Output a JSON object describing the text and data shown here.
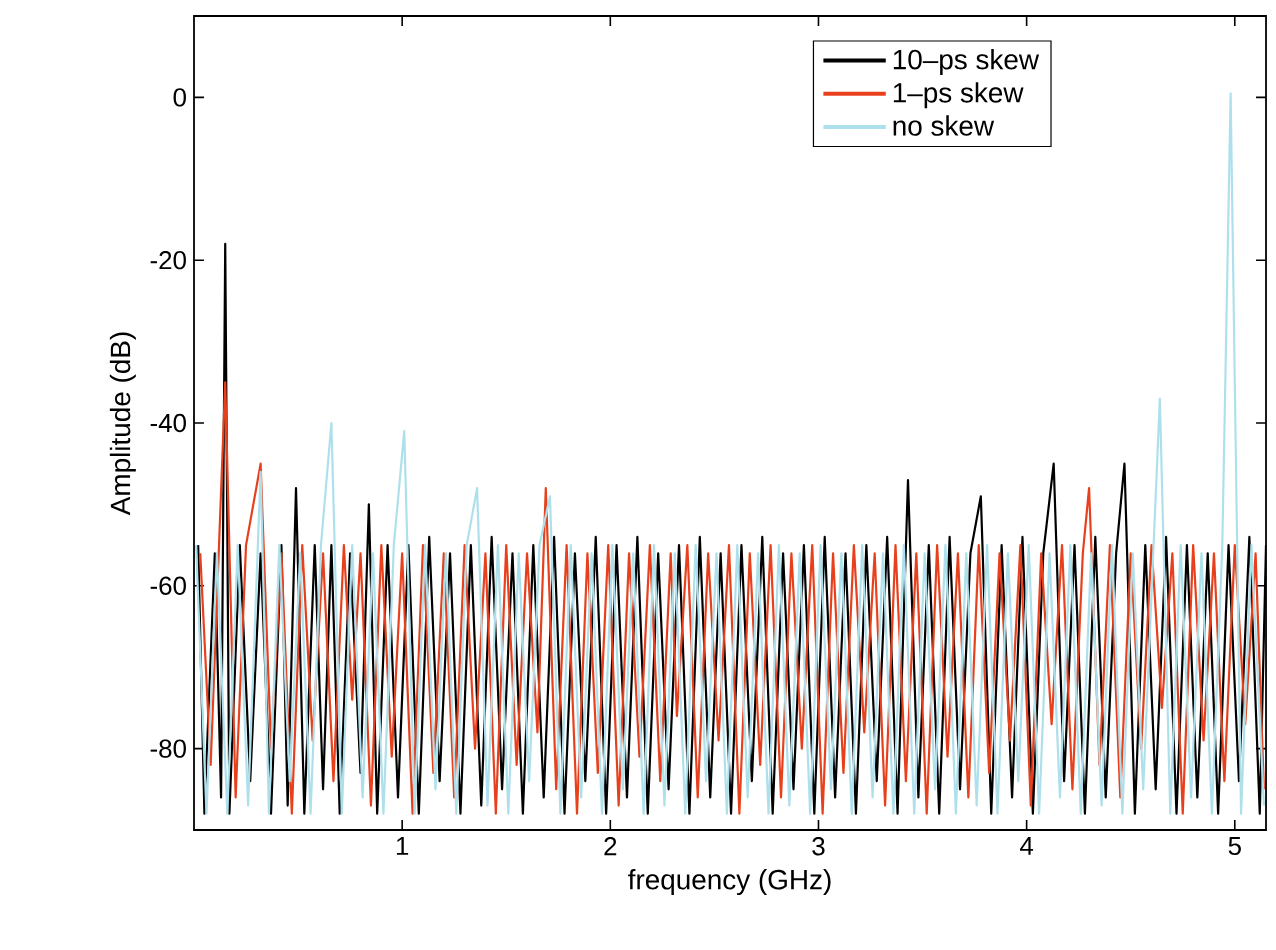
{
  "chart_data": {
    "type": "line",
    "xlabel": "frequency (GHz)",
    "ylabel": "Amplitude (dB)",
    "xlim": [
      0,
      5.15
    ],
    "ylim": [
      -90,
      10
    ],
    "xticks": [
      1,
      2,
      3,
      4,
      5
    ],
    "yticks": [
      -80,
      -60,
      -40,
      -20,
      0
    ],
    "grid": false,
    "legend": "top right",
    "marker": "none",
    "line_style": "solid",
    "series": [
      {
        "name": "10–ps skew",
        "color": "#000000",
        "x": [
          0.02,
          0.05,
          0.1,
          0.13,
          0.15,
          0.17,
          0.22,
          0.27,
          0.32,
          0.37,
          0.42,
          0.45,
          0.49,
          0.53,
          0.58,
          0.62,
          0.66,
          0.7,
          0.75,
          0.8,
          0.84,
          0.88,
          0.93,
          0.98,
          1.03,
          1.08,
          1.13,
          1.18,
          1.23,
          1.28,
          1.33,
          1.38,
          1.43,
          1.48,
          1.53,
          1.58,
          1.63,
          1.68,
          1.73,
          1.78,
          1.83,
          1.88,
          1.93,
          1.98,
          2.03,
          2.08,
          2.13,
          2.18,
          2.23,
          2.28,
          2.33,
          2.38,
          2.43,
          2.48,
          2.53,
          2.58,
          2.63,
          2.68,
          2.73,
          2.78,
          2.83,
          2.88,
          2.93,
          2.98,
          3.03,
          3.08,
          3.13,
          3.18,
          3.23,
          3.28,
          3.33,
          3.38,
          3.43,
          3.48,
          3.53,
          3.58,
          3.63,
          3.68,
          3.73,
          3.78,
          3.83,
          3.88,
          3.93,
          3.98,
          4.03,
          4.08,
          4.13,
          4.18,
          4.23,
          4.28,
          4.33,
          4.38,
          4.43,
          4.47,
          4.52,
          4.57,
          4.62,
          4.67,
          4.72,
          4.77,
          4.82,
          4.87,
          4.92,
          4.97,
          5.02,
          5.07,
          5.12,
          5.15
        ],
        "values": [
          -55,
          -88,
          -56,
          -86,
          -18,
          -88,
          -55,
          -84,
          -56,
          -88,
          -55,
          -87,
          -48,
          -88,
          -55,
          -85,
          -55,
          -88,
          -56,
          -83,
          -50,
          -88,
          -55,
          -86,
          -55,
          -88,
          -54,
          -84,
          -56,
          -88,
          -55,
          -87,
          -54,
          -85,
          -56,
          -88,
          -55,
          -86,
          -54,
          -88,
          -56,
          -84,
          -54,
          -88,
          -55,
          -86,
          -54,
          -88,
          -56,
          -85,
          -55,
          -88,
          -54,
          -86,
          -56,
          -88,
          -55,
          -84,
          -54,
          -88,
          -56,
          -85,
          -55,
          -88,
          -54,
          -86,
          -56,
          -88,
          -55,
          -84,
          -54,
          -88,
          -47,
          -86,
          -55,
          -88,
          -54,
          -85,
          -56,
          -49,
          -88,
          -55,
          -86,
          -54,
          -88,
          -56,
          -45,
          -84,
          -55,
          -88,
          -54,
          -86,
          -56,
          -45,
          -88,
          -55,
          -85,
          -54,
          -88,
          -55,
          -86,
          -56,
          -88,
          -55,
          -84,
          -54,
          -88,
          -55
        ]
      },
      {
        "name": "1–ps skew",
        "color": "#e8401c",
        "x": [
          0.03,
          0.08,
          0.15,
          0.2,
          0.25,
          0.32,
          0.37,
          0.42,
          0.47,
          0.52,
          0.57,
          0.62,
          0.67,
          0.72,
          0.76,
          0.8,
          0.85,
          0.9,
          0.95,
          1.0,
          1.05,
          1.1,
          1.15,
          1.2,
          1.25,
          1.3,
          1.35,
          1.4,
          1.45,
          1.5,
          1.55,
          1.6,
          1.65,
          1.69,
          1.74,
          1.79,
          1.84,
          1.89,
          1.94,
          1.99,
          2.04,
          2.09,
          2.14,
          2.19,
          2.24,
          2.29,
          2.32,
          2.37,
          2.42,
          2.47,
          2.52,
          2.57,
          2.62,
          2.67,
          2.72,
          2.77,
          2.82,
          2.87,
          2.92,
          2.97,
          3.02,
          3.07,
          3.12,
          3.17,
          3.22,
          3.27,
          3.32,
          3.37,
          3.42,
          3.47,
          3.52,
          3.57,
          3.62,
          3.67,
          3.72,
          3.77,
          3.82,
          3.87,
          3.92,
          3.97,
          4.02,
          4.07,
          4.12,
          4.17,
          4.22,
          4.27,
          4.3,
          4.35,
          4.4,
          4.45,
          4.5,
          4.55,
          4.6,
          4.65,
          4.7,
          4.75,
          4.8,
          4.85,
          4.9,
          4.95,
          5.0,
          5.05,
          5.1,
          5.14
        ],
        "values": [
          -56,
          -82,
          -35,
          -86,
          -55,
          -45,
          -80,
          -56,
          -88,
          -55,
          -79,
          -56,
          -84,
          -55,
          -74,
          -56,
          -87,
          -55,
          -81,
          -56,
          -88,
          -55,
          -83,
          -56,
          -86,
          -55,
          -80,
          -56,
          -88,
          -55,
          -82,
          -56,
          -78,
          -48,
          -85,
          -55,
          -88,
          -56,
          -83,
          -55,
          -87,
          -56,
          -81,
          -55,
          -84,
          -56,
          -76,
          -55,
          -86,
          -56,
          -79,
          -55,
          -88,
          -56,
          -82,
          -55,
          -86,
          -56,
          -80,
          -55,
          -88,
          -56,
          -83,
          -55,
          -78,
          -56,
          -87,
          -55,
          -84,
          -56,
          -88,
          -55,
          -81,
          -56,
          -86,
          -55,
          -83,
          -56,
          -79,
          -55,
          -87,
          -56,
          -77,
          -55,
          -85,
          -56,
          -48,
          -82,
          -55,
          -86,
          -56,
          -80,
          -55,
          -75,
          -56,
          -88,
          -55,
          -79,
          -56,
          -84,
          -55,
          -77,
          -56,
          -85
        ]
      },
      {
        "name": "no skew",
        "color": "#aee0ec",
        "x": [
          0.01,
          0.06,
          0.11,
          0.16,
          0.21,
          0.26,
          0.32,
          0.36,
          0.41,
          0.46,
          0.51,
          0.56,
          0.61,
          0.66,
          0.71,
          0.76,
          0.81,
          0.86,
          0.91,
          0.96,
          1.01,
          1.06,
          1.11,
          1.16,
          1.21,
          1.26,
          1.31,
          1.36,
          1.41,
          1.46,
          1.51,
          1.56,
          1.61,
          1.66,
          1.71,
          1.76,
          1.81,
          1.86,
          1.91,
          1.96,
          2.01,
          2.06,
          2.11,
          2.16,
          2.21,
          2.26,
          2.31,
          2.36,
          2.41,
          2.46,
          2.51,
          2.56,
          2.61,
          2.66,
          2.71,
          2.76,
          2.81,
          2.86,
          2.91,
          2.96,
          3.01,
          3.06,
          3.11,
          3.16,
          3.21,
          3.26,
          3.31,
          3.36,
          3.41,
          3.46,
          3.51,
          3.56,
          3.61,
          3.66,
          3.71,
          3.76,
          3.81,
          3.86,
          3.91,
          3.96,
          4.01,
          4.06,
          4.11,
          4.16,
          4.21,
          4.26,
          4.31,
          4.36,
          4.41,
          4.46,
          4.51,
          4.56,
          4.64,
          4.69,
          4.74,
          4.79,
          4.84,
          4.89,
          4.94,
          4.98,
          5.03,
          5.08,
          5.14
        ],
        "values": [
          -55,
          -88,
          -56,
          -88,
          -55,
          -87,
          -46,
          -88,
          -55,
          -84,
          -56,
          -88,
          -55,
          -40,
          -88,
          -55,
          -86,
          -56,
          -88,
          -55,
          -41,
          -88,
          -55,
          -85,
          -56,
          -88,
          -55,
          -48,
          -87,
          -55,
          -88,
          -56,
          -84,
          -55,
          -49,
          -88,
          -55,
          -86,
          -56,
          -88,
          -55,
          -85,
          -56,
          -88,
          -55,
          -87,
          -56,
          -88,
          -55,
          -84,
          -56,
          -88,
          -55,
          -86,
          -56,
          -88,
          -55,
          -87,
          -56,
          -88,
          -55,
          -85,
          -56,
          -88,
          -55,
          -86,
          -56,
          -88,
          -55,
          -88,
          -56,
          -85,
          -55,
          -88,
          -56,
          -87,
          -55,
          -88,
          -56,
          -84,
          -55,
          -88,
          -56,
          -86,
          -55,
          -88,
          -56,
          -87,
          -55,
          -88,
          -56,
          -85,
          -37,
          -88,
          -55,
          -86,
          -56,
          -88,
          -55,
          0.5,
          -88,
          -55,
          -87
        ]
      }
    ]
  }
}
